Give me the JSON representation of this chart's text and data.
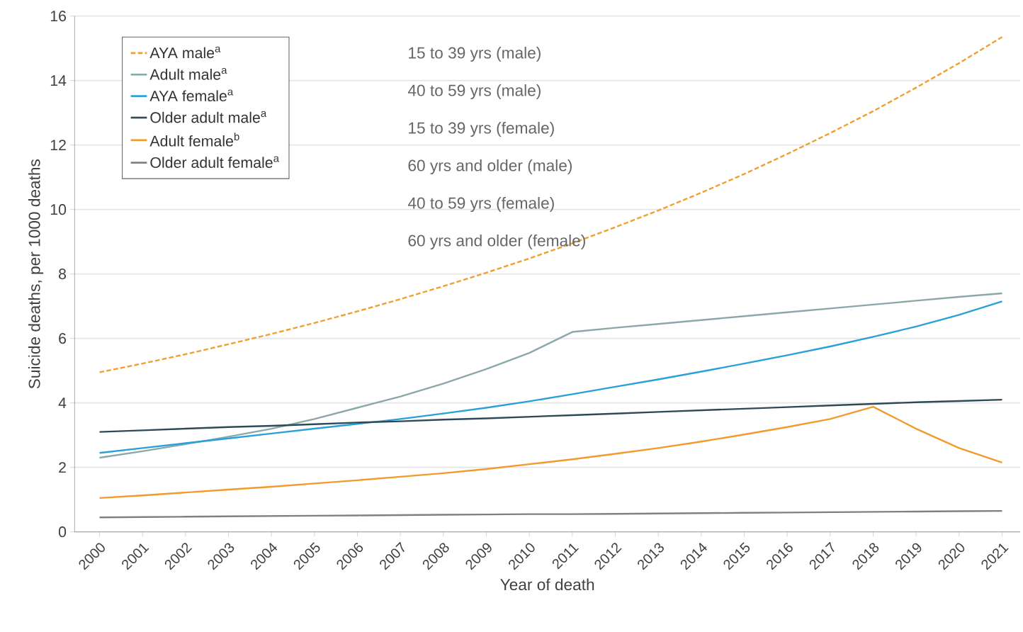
{
  "chart_data": {
    "type": "line",
    "xlabel": "Year of death",
    "ylabel": "Suicide deaths, per 1000 deaths",
    "categories": [
      "2000",
      "2001",
      "2002",
      "2003",
      "2004",
      "2005",
      "2006",
      "2007",
      "2008",
      "2009",
      "2010",
      "2011",
      "2012",
      "2013",
      "2014",
      "2015",
      "2016",
      "2017",
      "2018",
      "2019",
      "2020",
      "2021"
    ],
    "ylim": [
      0,
      16
    ],
    "yticks": [
      0,
      2,
      4,
      6,
      8,
      10,
      12,
      14,
      16
    ],
    "grid": "y",
    "legend": "top left",
    "marker": "none",
    "line_style": "solid",
    "series": [
      {
        "name": "AYA male$^{a}$",
        "color": "#f0a030",
        "line_style": "dashed",
        "values": [
          4.95,
          5.22,
          5.51,
          5.82,
          6.14,
          6.48,
          6.84,
          7.22,
          7.62,
          8.04,
          8.48,
          8.95,
          9.45,
          9.97,
          10.52,
          11.1,
          11.72,
          12.37,
          13.05,
          13.78,
          14.54,
          15.35
        ]
      },
      {
        "name": "Adult male$^{a}$",
        "color": "#8aa8aa",
        "values": [
          2.3,
          2.5,
          2.72,
          2.95,
          3.2,
          3.5,
          3.85,
          4.2,
          4.6,
          5.05,
          5.55,
          6.2,
          6.33,
          6.45,
          6.57,
          6.69,
          6.81,
          6.93,
          7.05,
          7.17,
          7.29,
          7.4
        ]
      },
      {
        "name": "AYA female$^{a}$",
        "color": "#2aa0d8",
        "values": [
          2.45,
          2.6,
          2.75,
          2.9,
          3.05,
          3.2,
          3.35,
          3.5,
          3.67,
          3.85,
          4.05,
          4.27,
          4.5,
          4.73,
          4.97,
          5.22,
          5.48,
          5.75,
          6.05,
          6.37,
          6.73,
          7.15
        ]
      },
      {
        "name": "Older adult male$^{a}$",
        "color": "#2e4a58",
        "values": [
          3.1,
          3.15,
          3.2,
          3.25,
          3.29,
          3.34,
          3.39,
          3.43,
          3.48,
          3.52,
          3.57,
          3.62,
          3.67,
          3.72,
          3.77,
          3.82,
          3.87,
          3.92,
          3.97,
          4.02,
          4.06,
          4.1
        ]
      },
      {
        "name": "Adult female$^{b}$",
        "color": "#f39a2c",
        "values": [
          1.05,
          1.13,
          1.22,
          1.31,
          1.4,
          1.5,
          1.6,
          1.71,
          1.82,
          1.95,
          2.1,
          2.25,
          2.42,
          2.6,
          2.8,
          3.02,
          3.25,
          3.5,
          3.88,
          3.2,
          2.6,
          2.15
        ]
      },
      {
        "name": "Older adult female$^{a}$",
        "color": "#808080",
        "values": [
          0.45,
          0.46,
          0.47,
          0.48,
          0.49,
          0.5,
          0.51,
          0.52,
          0.53,
          0.54,
          0.55,
          0.55,
          0.56,
          0.57,
          0.58,
          0.59,
          0.6,
          0.61,
          0.62,
          0.63,
          0.64,
          0.65
        ]
      }
    ],
    "annotations": [
      "15 to 39 yrs (male)",
      "40 to 59 yrs (male)",
      "15 to 39 yrs (female)",
      "60 yrs and older (male)",
      "40 to 59 yrs (female)",
      "60 yrs and older (female)"
    ]
  }
}
